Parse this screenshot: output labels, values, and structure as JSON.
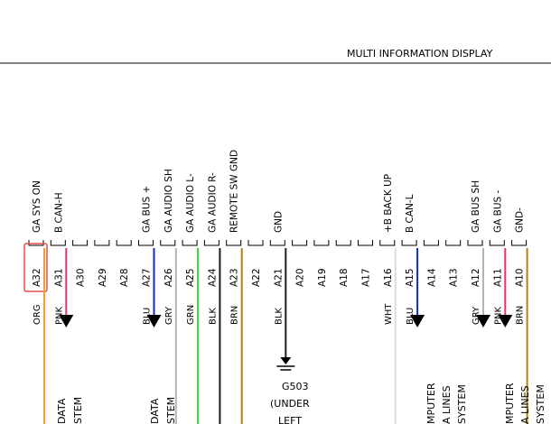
{
  "component_title": "MULTI INFORMATION DISPLAY",
  "colors": {
    "ORG": "#f0a030",
    "PNK": "#e8336a",
    "BLU": "#1428d2",
    "GRY": "#b4b4b4",
    "GRN": "#3ccd32",
    "BLK": "#1e1e1e",
    "BRN": "#b4820a",
    "WHT": "#dcdcdc",
    "highlight": "#e84d4d"
  },
  "pins": [
    {
      "pin": "A32",
      "signal": "GA SYS ON",
      "wire": "ORG",
      "highlight": true
    },
    {
      "pin": "A31",
      "signal": "B CAN-H",
      "wire": "PNK"
    },
    {
      "pin": "A30",
      "signal": "",
      "wire": ""
    },
    {
      "pin": "A29",
      "signal": "",
      "wire": ""
    },
    {
      "pin": "A28",
      "signal": "",
      "wire": ""
    },
    {
      "pin": "A27",
      "signal": "GA BUS +",
      "wire": "BLU"
    },
    {
      "pin": "A26",
      "signal": "GA AUDIO SH",
      "wire": "GRY"
    },
    {
      "pin": "A25",
      "signal": "GA AUDIO L-",
      "wire": "GRN"
    },
    {
      "pin": "A24",
      "signal": "GA AUDIO R-",
      "wire": "BLK"
    },
    {
      "pin": "A23",
      "signal": "REMOTE SW GND",
      "wire": "BRN"
    },
    {
      "pin": "A22",
      "signal": "",
      "wire": ""
    },
    {
      "pin": "A21",
      "signal": "GND",
      "wire": "BLK"
    },
    {
      "pin": "A20",
      "signal": "",
      "wire": ""
    },
    {
      "pin": "A19",
      "signal": "",
      "wire": ""
    },
    {
      "pin": "A18",
      "signal": "",
      "wire": ""
    },
    {
      "pin": "A17",
      "signal": "",
      "wire": ""
    },
    {
      "pin": "A16",
      "signal": "+B BACK UP",
      "wire": "WHT"
    },
    {
      "pin": "A15",
      "signal": "B CAN-L",
      "wire": "BLU"
    },
    {
      "pin": "A14",
      "signal": "",
      "wire": ""
    },
    {
      "pin": "A13",
      "signal": "",
      "wire": ""
    },
    {
      "pin": "A12",
      "signal": "GA BUS SH",
      "wire": "GRY"
    },
    {
      "pin": "A11",
      "signal": "GA BUS -",
      "wire": "PNK"
    },
    {
      "pin": "A10",
      "signal": "GND-",
      "wire": "BRN"
    }
  ],
  "bottom_labels": [
    {
      "lines": [
        "DATA",
        "STEM"
      ]
    },
    {
      "lines": [
        "DATA",
        "STEM"
      ]
    },
    {
      "lines": [
        "G503",
        "(UNDER",
        "LEFT"
      ]
    },
    {
      "lines": [
        "MPUTER",
        "A LINES",
        "SYSTEM"
      ]
    },
    {
      "lines": [
        "MPUTER",
        "A LINES",
        "SYSTEM"
      ]
    }
  ]
}
